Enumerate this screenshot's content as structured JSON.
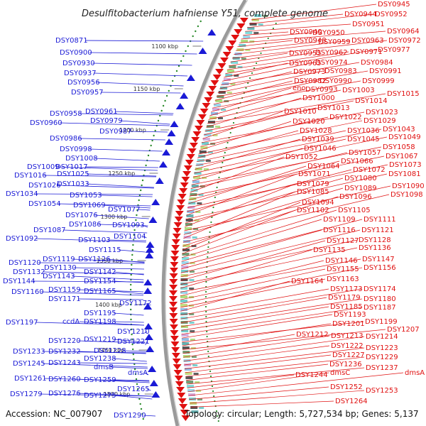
{
  "title": "Desulfitobacterium hafniense Y51, complete genome",
  "footer": {
    "accession": "Accession: NC_007907",
    "summary": "Topology: circular; Length: 5,727,534 bp; Genes: 5,137"
  },
  "colors": {
    "reverse_strand": "#1a1ad6",
    "forward_strand": "#e01010",
    "backbone": "#9a9a9a",
    "gc_dots": "#2a8a2a"
  },
  "ticks": [
    "1100 kbp",
    "1150 kbp",
    "1200 kbp",
    "1250 kbp",
    "1300 kbp",
    "1350 kbp",
    "1400 kbp",
    "1450 kbp",
    "1500 kbp"
  ],
  "left_labels": [
    "DSY0871",
    "DSY0900",
    "DSY0930",
    "DSY0937",
    "DSY0956",
    "DSY0957",
    "DSY0958",
    "DSY0961",
    "DSY0960",
    "DSY0979",
    "DSY0987",
    "DSY0986",
    "DSY0998",
    "DSY1008",
    "DSY1009",
    "DSY1017",
    "DSY1016",
    "DSY1025",
    "DSY1026",
    "DSY1033",
    "DSY1034",
    "DSY1053",
    "DSY1054",
    "DSY1069",
    "DSY1076",
    "DSY1077",
    "DSY1086",
    "DSY1093",
    "DSY1087",
    "DSY1092",
    "DSY1103",
    "DSY1104",
    "DSY1115",
    "DSY1119",
    "DSY1126",
    "DSY1120",
    "DSY1130",
    "DSY1132",
    "DSY1142",
    "DSY1143",
    "DSY1144",
    "DSY1154",
    "DSY1159",
    "DSY1165",
    "DSY1160",
    "DSY1171",
    "DSY1172",
    "DSY1195",
    "DSY1197",
    "ccdA",
    "DSY1198",
    "DSY1210",
    "DSY1220",
    "DSY1219",
    "DSY1221",
    "DSY1228",
    "DSY1233",
    "DSY1232",
    "DSY1238",
    "DSY1245",
    "DSY1243",
    "dmsB",
    "dmsA",
    "DSY1261",
    "DSY1260",
    "DSY1259",
    "DSY1265",
    "DSY1279",
    "DSY1276",
    "DSY1275",
    "DSY1290"
  ],
  "right_labels": [
    "DSY0945",
    "DSY0944",
    "DSY0952",
    "DSY0951",
    "DSY0940",
    "DSY0950",
    "DSY0964",
    "DSY0948",
    "DSY0959",
    "DSY0963",
    "DSY0972",
    "DSY0955",
    "DSY0962",
    "DSY0971",
    "DSY0977",
    "DSY0965",
    "DSY0974",
    "DSY0984",
    "DSY0973",
    "DSY0983",
    "DSY0991",
    "DSY0982",
    "DSY0990",
    "DSY0999",
    "eno",
    "DSY0993",
    "DSY1003",
    "DSY1015",
    "DSY1000",
    "DSY1014",
    "DSY1013",
    "DSY1010",
    "DSY1023",
    "DSY1022",
    "DSY1020",
    "DSY1029",
    "DSY1028",
    "DSY1036",
    "DSY1043",
    "DSY1039",
    "DSY1045",
    "DSY1049",
    "DSY1046",
    "DSY1058",
    "DSY1057",
    "DSY1052",
    "DSY1067",
    "DSY1066",
    "DSY1064",
    "DSY1073",
    "DSY1072",
    "DSY1071",
    "DSY1081",
    "DSY1080",
    "DSY1079",
    "DSY1090",
    "DSY1089",
    "DSY1085",
    "DSY1098",
    "DSY1096",
    "DSY1094",
    "DSY1102",
    "DSY1105",
    "DSY1109",
    "DSY1111",
    "DSY1116",
    "DSY1121",
    "DSY1128",
    "DSY1127",
    "DSY1136",
    "DSY1135",
    "DSY1147",
    "DSY1146",
    "DSY1155",
    "DSY1156",
    "DSY1163",
    "DSY1164",
    "DSY1173",
    "DSY1174",
    "DSY1179",
    "DSY1180",
    "DSY1185",
    "DSY1187",
    "DSY1193",
    "DSY1199",
    "DSY1201",
    "DSY1207",
    "DSY1212",
    "DSY1213",
    "DSY1214",
    "DSY1222",
    "DSY1223",
    "DSY1227",
    "DSY1229",
    "DSY1236",
    "DSY1237",
    "DSY1244",
    "dmsC",
    "dmsA",
    "DSY1252",
    "DSY1253",
    "DSY1264"
  ]
}
